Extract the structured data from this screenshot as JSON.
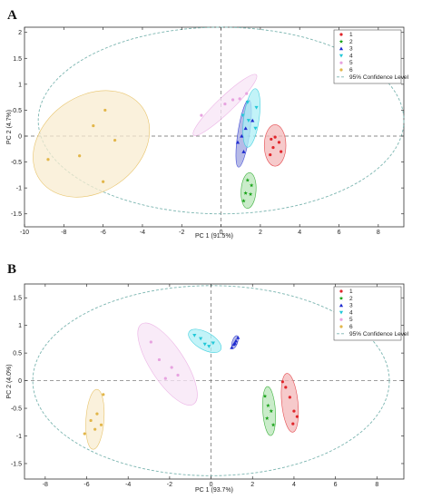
{
  "colors": {
    "series": [
      "#e0262b",
      "#19a319",
      "#1e2bd0",
      "#22c8d8",
      "#e7a3e0",
      "#e2b64a"
    ],
    "fills": [
      "#f3b8b9",
      "#b8e6b8",
      "#9ea3df",
      "#aeeff5",
      "#f7e4f6",
      "#f8ecd0"
    ],
    "confidence": "#7bb5b0"
  },
  "chart_data": [
    {
      "type": "scatter",
      "panel_label": "A",
      "xlabel": "PC 1 (91.5%)",
      "ylabel": "PC 2 (4.7%)",
      "xlim": [
        -10,
        9.3
      ],
      "ylim": [
        -1.75,
        2.1
      ],
      "xticks": [
        -10,
        -8,
        -6,
        -4,
        -2,
        0,
        2,
        4,
        6,
        8
      ],
      "yticks": [
        -1.5,
        -1,
        -0.5,
        0,
        0.5,
        1,
        1.5,
        2
      ],
      "tick_labels_x": [
        "-10",
        "-8",
        "-6",
        "-4",
        "-2",
        "0",
        "2",
        "4",
        "6",
        "8"
      ],
      "tick_labels_y": [
        "-1.5",
        "-1",
        "-0.5",
        "0",
        "0.5",
        "1",
        "1.5",
        "2"
      ],
      "legend": {
        "position": "top-right",
        "entries": [
          "1",
          "2",
          "3",
          "4",
          "5",
          "6",
          "95% Confidence Level"
        ]
      },
      "confidence_ellipse": {
        "center": [
          0,
          0.3
        ],
        "radius_x": 9.3,
        "radius_y": 1.8
      },
      "series": [
        {
          "name": "1",
          "marker": "circle",
          "points": [
            [
              2.55,
              -0.06
            ],
            [
              2.75,
              -0.02
            ],
            [
              2.95,
              -0.12
            ],
            [
              2.65,
              -0.22
            ],
            [
              3.05,
              -0.3
            ],
            [
              2.5,
              -0.36
            ]
          ],
          "ellipse": {
            "center": [
              2.75,
              -0.18
            ],
            "radius_x": 0.55,
            "radius_y": 0.4,
            "angle": 0
          }
        },
        {
          "name": "2",
          "marker": "star",
          "points": [
            [
              1.35,
              -0.85
            ],
            [
              1.55,
              -0.95
            ],
            [
              1.25,
              -1.1
            ],
            [
              1.5,
              -1.12
            ],
            [
              1.15,
              -1.25
            ]
          ],
          "ellipse": {
            "center": [
              1.4,
              -1.05
            ],
            "radius_x": 0.35,
            "radius_y": 0.35,
            "angle": 80
          }
        },
        {
          "name": "3",
          "marker": "triangle",
          "points": [
            [
              1.6,
              0.3
            ],
            [
              1.25,
              0.15
            ],
            [
              1.05,
              0.0
            ],
            [
              0.85,
              -0.12
            ],
            [
              1.15,
              -0.3
            ]
          ],
          "ellipse": {
            "center": [
              1.15,
              0.05
            ],
            "radius_x": 0.7,
            "radius_y": 0.22,
            "angle": 68
          }
        },
        {
          "name": "4",
          "marker": "triangle-down",
          "points": [
            [
              1.1,
              0.4
            ],
            [
              1.4,
              0.3
            ],
            [
              1.75,
              0.15
            ],
            [
              1.8,
              0.55
            ],
            [
              1.35,
              0.65
            ]
          ],
          "ellipse": {
            "center": [
              1.55,
              0.35
            ],
            "radius_x": 0.6,
            "radius_y": 0.3,
            "angle": 70
          }
        },
        {
          "name": "5",
          "marker": "circle",
          "points": [
            [
              -1.0,
              0.4
            ],
            [
              0.2,
              0.62
            ],
            [
              0.6,
              0.7
            ],
            [
              0.95,
              0.72
            ],
            [
              1.3,
              0.82
            ]
          ],
          "ellipse": {
            "center": [
              0.2,
              0.6
            ],
            "radius_x": 1.7,
            "radius_y": 0.16,
            "angle": 20
          }
        },
        {
          "name": "6",
          "marker": "circle",
          "points": [
            [
              -5.9,
              0.5
            ],
            [
              -6.5,
              0.2
            ],
            [
              -5.4,
              -0.08
            ],
            [
              -8.8,
              -0.45
            ],
            [
              -7.2,
              -0.38
            ],
            [
              -6.0,
              -0.88
            ]
          ],
          "ellipse": {
            "center": [
              -6.6,
              -0.15
            ],
            "radius_x": 2.7,
            "radius_y": 0.95,
            "angle": 15
          }
        }
      ]
    },
    {
      "type": "scatter",
      "panel_label": "B",
      "xlabel": "PC 1 (93.7%)",
      "ylabel": "PC 2 (4.0%)",
      "xlim": [
        -9,
        9.3
      ],
      "ylim": [
        -1.78,
        1.75
      ],
      "xticks": [
        -8,
        -6,
        -4,
        -2,
        0,
        2,
        4,
        6,
        8
      ],
      "yticks": [
        -1.5,
        -1,
        -0.5,
        0,
        0.5,
        1,
        1.5
      ],
      "tick_labels_x": [
        "-8",
        "-6",
        "-4",
        "-2",
        "0",
        "2",
        "4",
        "6",
        "8"
      ],
      "tick_labels_y": [
        "-1.5",
        "-1",
        "-0.5",
        "0",
        "0.5",
        "1",
        "1.5"
      ],
      "legend": {
        "position": "top-right",
        "entries": [
          "1",
          "2",
          "3",
          "4",
          "5",
          "6",
          "95% Confidence Level"
        ]
      },
      "confidence_ellipse": {
        "center": [
          0,
          0
        ],
        "radius_x": 8.6,
        "radius_y": 1.72
      },
      "series": [
        {
          "name": "1",
          "marker": "circle",
          "points": [
            [
              3.45,
              -0.02
            ],
            [
              3.6,
              -0.12
            ],
            [
              3.8,
              -0.3
            ],
            [
              4.0,
              -0.55
            ],
            [
              4.15,
              -0.65
            ],
            [
              3.95,
              -0.78
            ]
          ],
          "ellipse": {
            "center": [
              3.8,
              -0.4
            ],
            "radius_x": 0.55,
            "radius_y": 0.33,
            "angle": -75
          }
        },
        {
          "name": "2",
          "marker": "star",
          "points": [
            [
              2.6,
              -0.28
            ],
            [
              2.75,
              -0.45
            ],
            [
              2.9,
              -0.55
            ],
            [
              2.7,
              -0.68
            ],
            [
              3.0,
              -0.8
            ]
          ],
          "ellipse": {
            "center": [
              2.8,
              -0.55
            ],
            "radius_x": 0.45,
            "radius_y": 0.28,
            "angle": -80
          }
        },
        {
          "name": "3",
          "marker": "triangle",
          "points": [
            [
              1.0,
              0.6
            ],
            [
              1.15,
              0.68
            ],
            [
              1.3,
              0.78
            ],
            [
              1.2,
              0.72
            ],
            [
              1.1,
              0.66
            ]
          ],
          "ellipse": {
            "center": [
              1.15,
              0.7
            ],
            "radius_x": 0.15,
            "radius_y": 0.07,
            "angle": 50
          }
        },
        {
          "name": "4",
          "marker": "triangle-down",
          "points": [
            [
              -0.8,
              0.82
            ],
            [
              -0.5,
              0.76
            ],
            [
              -0.3,
              0.66
            ],
            [
              -0.1,
              0.62
            ],
            [
              0.1,
              0.68
            ]
          ],
          "ellipse": {
            "center": [
              -0.3,
              0.72
            ],
            "radius_x": 0.78,
            "radius_y": 0.16,
            "angle": -12
          }
        },
        {
          "name": "5",
          "marker": "circle",
          "points": [
            [
              -2.9,
              0.7
            ],
            [
              -2.5,
              0.38
            ],
            [
              -1.9,
              0.24
            ],
            [
              -1.6,
              0.1
            ],
            [
              -2.2,
              0.04
            ]
          ],
          "ellipse": {
            "center": [
              -2.1,
              0.3
            ],
            "radius_x": 1.45,
            "radius_y": 0.35,
            "angle": -30
          }
        },
        {
          "name": "6",
          "marker": "circle",
          "points": [
            [
              -5.2,
              -0.25
            ],
            [
              -5.5,
              -0.6
            ],
            [
              -5.8,
              -0.72
            ],
            [
              -6.1,
              -0.96
            ],
            [
              -5.6,
              -0.88
            ],
            [
              -5.3,
              -0.8
            ]
          ],
          "ellipse": {
            "center": [
              -5.6,
              -0.7
            ],
            "radius_x": 0.55,
            "radius_y": 0.4,
            "angle": 80
          }
        }
      ]
    }
  ]
}
